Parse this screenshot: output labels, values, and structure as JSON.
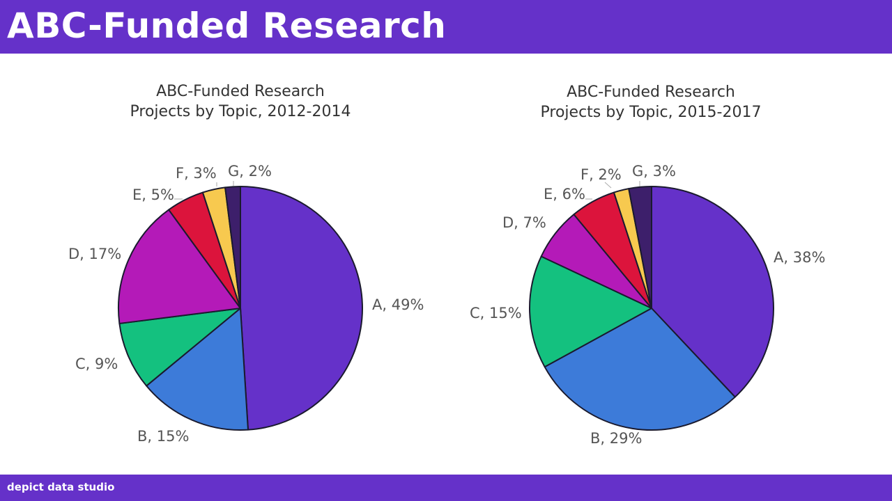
{
  "header": {
    "title": "ABC-Funded Research"
  },
  "footer": {
    "brand": "depict data studio"
  },
  "colors": {
    "brand": "#6531c9",
    "A": "#6531c9",
    "B": "#3d7bd9",
    "C": "#14c17f",
    "D": "#b41ab8",
    "E": "#dc143c",
    "F": "#f7c94f",
    "G": "#3d1f6b"
  },
  "chart_data": [
    {
      "type": "pie",
      "title_line1": "ABC-Funded Research",
      "title_line2": "Projects by Topic, 2012-2014",
      "categories": [
        "A",
        "B",
        "C",
        "D",
        "E",
        "F",
        "G"
      ],
      "values": [
        49,
        15,
        9,
        17,
        5,
        3,
        2
      ],
      "labels": [
        "A, 49%",
        "B, 15%",
        "C, 9%",
        "D, 17%",
        "E, 5%",
        "F, 3%",
        "G, 2%"
      ]
    },
    {
      "type": "pie",
      "title_line1": "ABC-Funded Research",
      "title_line2": "Projects by Topic, 2015-2017",
      "categories": [
        "A",
        "B",
        "C",
        "D",
        "E",
        "F",
        "G"
      ],
      "values": [
        38,
        29,
        15,
        7,
        6,
        2,
        3
      ],
      "labels": [
        "A, 38%",
        "B, 29%",
        "C, 15%",
        "D, 7%",
        "E, 6%",
        "F, 2%",
        "G, 3%"
      ]
    }
  ]
}
